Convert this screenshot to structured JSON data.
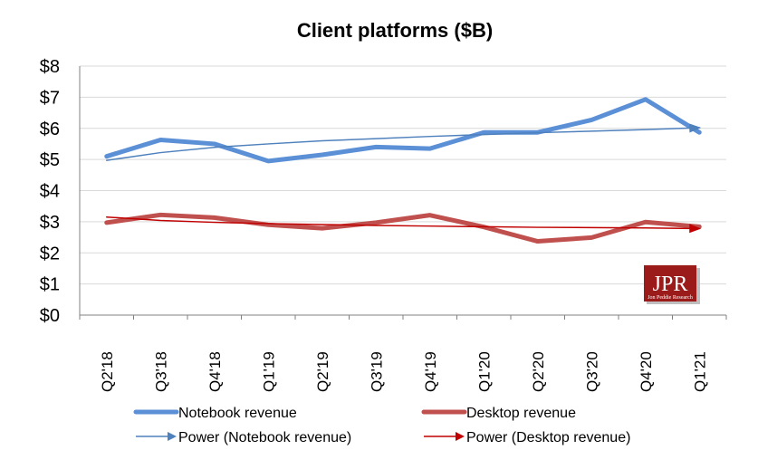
{
  "chart_data": {
    "type": "line",
    "title": "Client platforms ($B)",
    "categories": [
      "Q2'18",
      "Q3'18",
      "Q4'18",
      "Q1'19",
      "Q2'19",
      "Q3'19",
      "Q4'19",
      "Q1'20",
      "Q2'20",
      "Q3'20",
      "Q4'20",
      "Q1'21"
    ],
    "y_tick_labels": [
      "$0",
      "$1",
      "$2",
      "$3",
      "$4",
      "$5",
      "$6",
      "$7",
      "$8"
    ],
    "ylim": [
      0,
      8
    ],
    "grid": true,
    "legend_position": "bottom",
    "series": [
      {
        "name": "Notebook revenue",
        "color": "#5B8FD6",
        "style": "thick-line",
        "values": [
          5.1,
          5.63,
          5.5,
          4.95,
          5.15,
          5.4,
          5.35,
          5.87,
          5.87,
          6.27,
          6.93,
          5.87
        ]
      },
      {
        "name": "Desktop revenue",
        "color": "#C0504D",
        "style": "thick-line",
        "values": [
          2.97,
          3.22,
          3.13,
          2.9,
          2.79,
          2.97,
          3.21,
          2.83,
          2.37,
          2.49,
          2.99,
          2.84
        ]
      },
      {
        "name": "Power (Notebook revenue)",
        "color": "#4F81BD",
        "style": "trendline-arrow",
        "values": [
          4.97,
          5.22,
          5.39,
          5.5,
          5.6,
          5.67,
          5.74,
          5.8,
          5.86,
          5.91,
          5.96,
          6.02
        ]
      },
      {
        "name": "Power (Desktop revenue)",
        "color": "#C00000",
        "style": "trendline-arrow",
        "values": [
          3.15,
          3.04,
          2.98,
          2.94,
          2.91,
          2.88,
          2.86,
          2.84,
          2.82,
          2.81,
          2.8,
          2.78
        ]
      }
    ]
  },
  "watermark": {
    "logo_text": "JPR",
    "logo_subtext": "Jon Peddie Research",
    "bg_color": "#9B1B1B"
  }
}
